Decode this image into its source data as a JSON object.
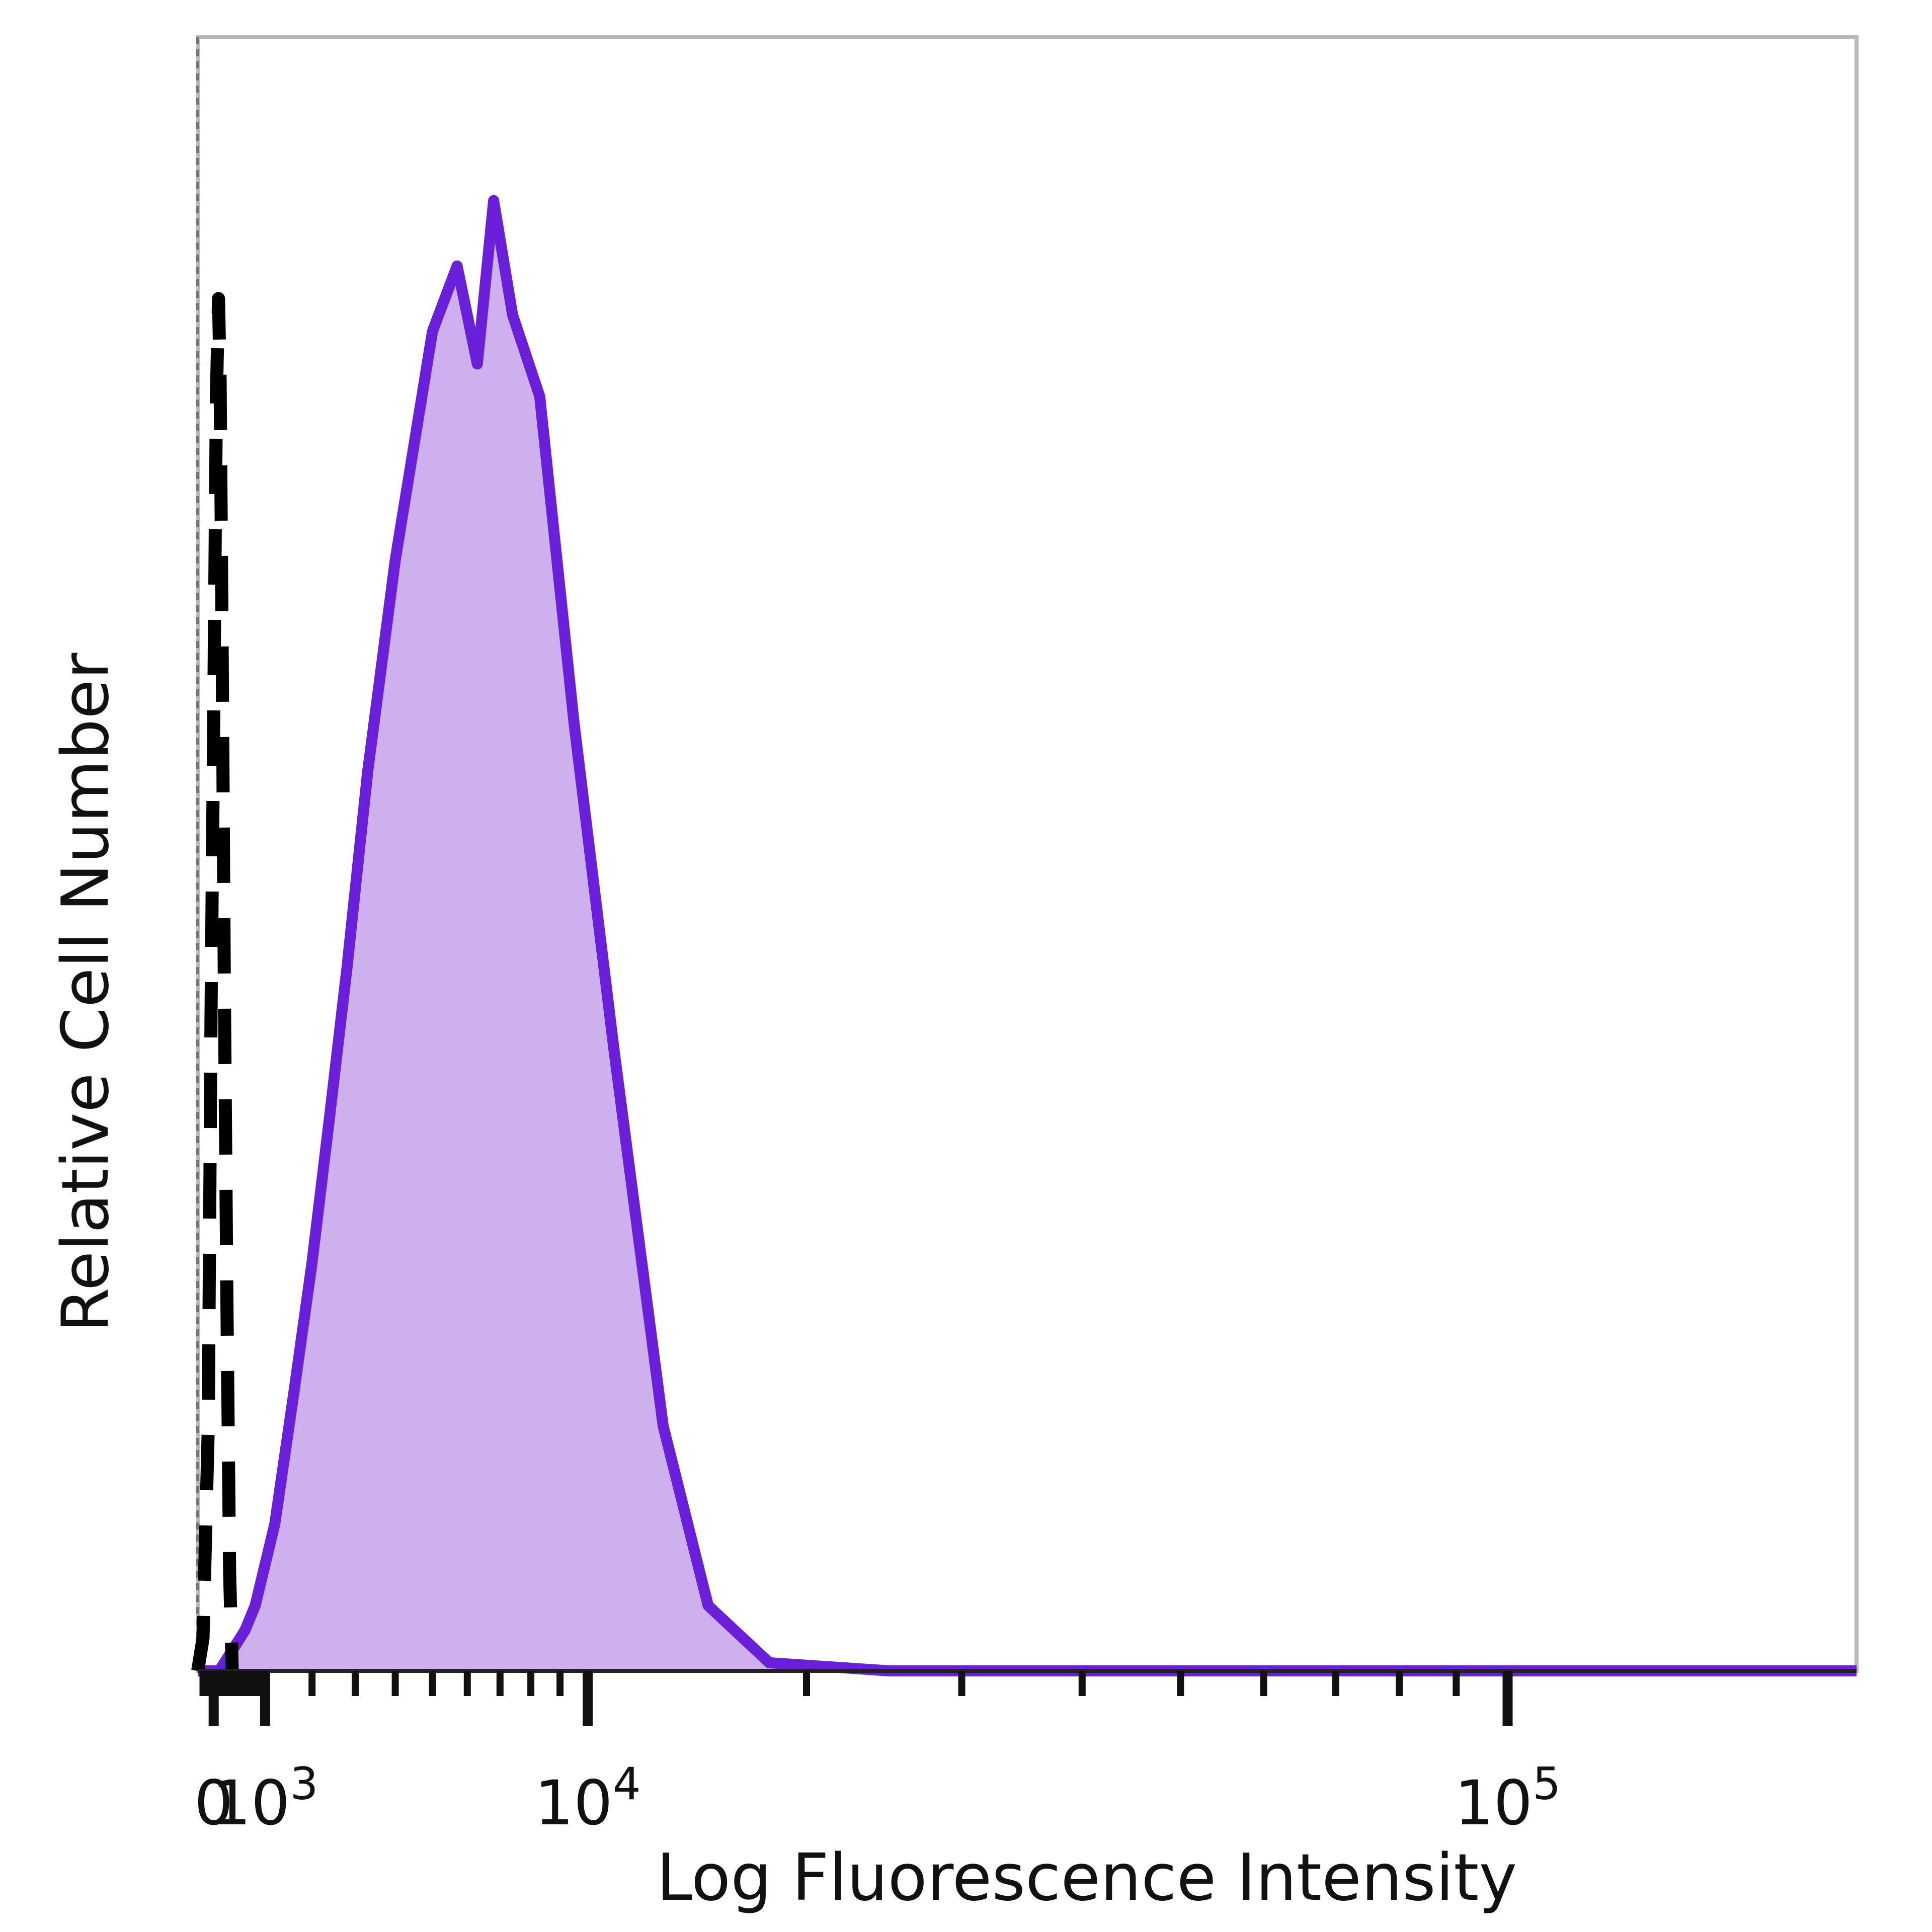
{
  "chart_data": {
    "type": "area",
    "title": "",
    "xlabel": "Log Fluorescence Intensity",
    "ylabel": "Relative Cell Number",
    "x_scale": "biexponential",
    "x_ticks": [
      {
        "label": "0",
        "value": 0,
        "base": "",
        "exp": ""
      },
      {
        "label": "10^3",
        "value": 1000,
        "base": "10",
        "exp": "3"
      },
      {
        "label": "10^4",
        "value": 10000,
        "base": "10",
        "exp": "4"
      },
      {
        "label": "10^5",
        "value": 100000,
        "base": "10",
        "exp": "5"
      }
    ],
    "xlim": [
      -300,
      200000
    ],
    "ylim": [
      0,
      100
    ],
    "grid": false,
    "legend": "none",
    "series": [
      {
        "style": "dashed",
        "color": "#000000",
        "fill": "none",
        "points": [
          [
            -300,
            0
          ],
          [
            -200,
            2
          ],
          [
            -100,
            15
          ],
          [
            -50,
            40
          ],
          [
            0,
            58
          ],
          [
            50,
            78
          ],
          [
            90,
            84
          ],
          [
            120,
            79
          ],
          [
            160,
            62
          ],
          [
            200,
            42
          ],
          [
            250,
            22
          ],
          [
            300,
            6
          ],
          [
            350,
            0
          ]
        ]
      },
      {
        "style": "solid",
        "color": "#6a1fd8",
        "fill": "#cfb0ef",
        "points": [
          [
            -300,
            0
          ],
          [
            100,
            0
          ],
          [
            200,
            0.5
          ],
          [
            400,
            1.5
          ],
          [
            600,
            2.5
          ],
          [
            800,
            4
          ],
          [
            1200,
            9
          ],
          [
            1600,
            17
          ],
          [
            2000,
            25
          ],
          [
            2400,
            34
          ],
          [
            2800,
            43
          ],
          [
            3300,
            55
          ],
          [
            4000,
            68
          ],
          [
            5000,
            82
          ],
          [
            5700,
            86
          ],
          [
            6300,
            80
          ],
          [
            6800,
            90
          ],
          [
            7400,
            83
          ],
          [
            8300,
            78
          ],
          [
            9500,
            58
          ],
          [
            11000,
            38
          ],
          [
            13000,
            15
          ],
          [
            15000,
            4
          ],
          [
            18000,
            0.5
          ],
          [
            25000,
            0
          ],
          [
            200000,
            0
          ]
        ]
      }
    ]
  }
}
